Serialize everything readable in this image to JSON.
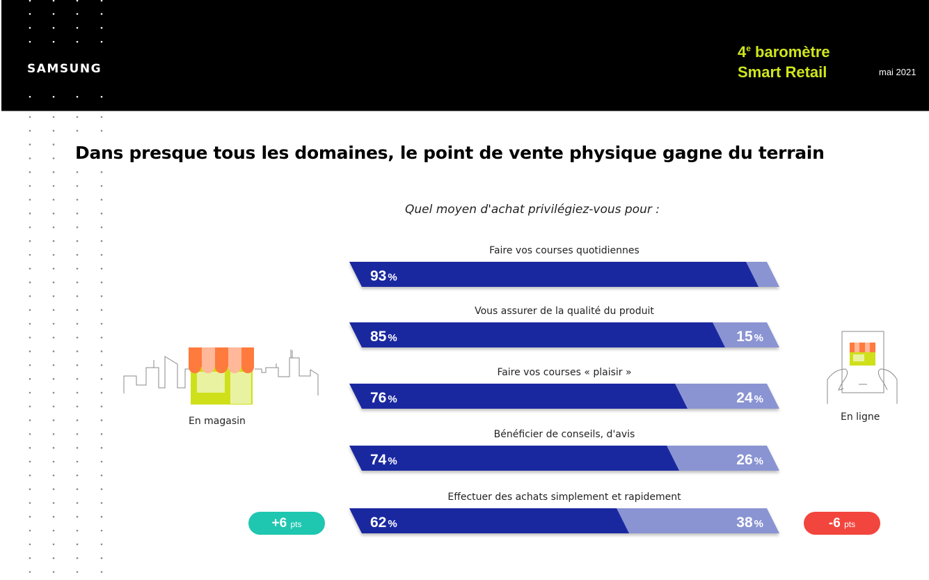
{
  "header": {
    "brand": "SAMSUNG",
    "report_line1": "4e baromètre",
    "report_line2": "Smart Retail",
    "date": "mai 2021"
  },
  "title": "Dans presque tous les domaines, le point de vente physique gagne du terrain",
  "colors": {
    "store": "#1a28a0",
    "online": "#8a94d2",
    "online_text_outside": "#8a94d2",
    "positive": "#1fc6b0",
    "negative": "#f2453d",
    "accent": "#cfe61c"
  },
  "left_icon": {
    "label": "En magasin",
    "icon": "storefront-icon"
  },
  "right_icon": {
    "label": "En ligne",
    "icon": "tablet-store-icon"
  },
  "badges": {
    "store_change": "+6",
    "online_change": "-6",
    "unit": "pts"
  },
  "chart_data": {
    "type": "bar",
    "stacked": true,
    "orientation": "horizontal",
    "title": "Quel moyen d'achat privilégiez-vous pour :",
    "categories": [
      "Faire vos courses quotidiennes",
      "Vous assurer de la qualité du produit",
      "Faire vos courses « plaisir »",
      "Bénéficier de conseils, d'avis",
      "Effectuer des achats simplement et rapidement"
    ],
    "series": [
      {
        "name": "En magasin",
        "values": [
          93,
          85,
          76,
          74,
          62
        ]
      },
      {
        "name": "En ligne",
        "values": [
          7,
          15,
          24,
          26,
          38
        ]
      }
    ],
    "unit": "%",
    "xlim": [
      0,
      100
    ]
  }
}
